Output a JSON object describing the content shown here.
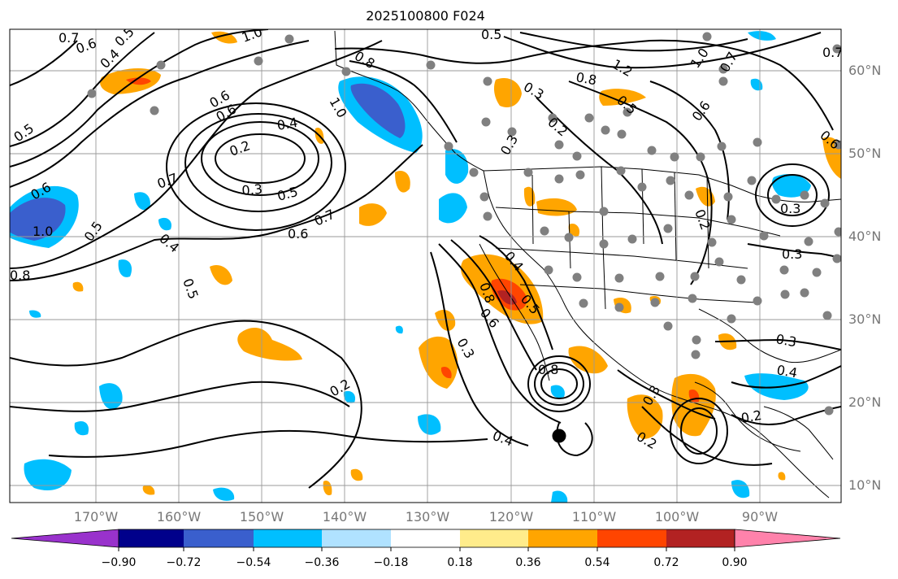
{
  "title": "2025100800 F024",
  "lat_labels": [
    "60°N",
    "50°N",
    "40°N",
    "30°N",
    "20°N",
    "10°N"
  ],
  "lon_labels": [
    "170°W",
    "160°W",
    "150°W",
    "140°W",
    "130°W",
    "120°W",
    "110°W",
    "100°W",
    "90°W"
  ],
  "colorbar": {
    "colors": [
      "#9932cc",
      "#00008b",
      "#3a5fcd",
      "#00bfff",
      "#b0e2ff",
      "#ffffff",
      "#ffec8b",
      "#ffa500",
      "#ff4500",
      "#b22222",
      "#ff82ab"
    ],
    "tick_labels": [
      "−0.90",
      "−0.72",
      "−0.54",
      "−0.36",
      "−0.18",
      "0.18",
      "0.36",
      "0.54",
      "0.72",
      "0.90"
    ]
  },
  "contour_labels": [
    "0.5",
    "0.7",
    "0.6",
    "0.4",
    "0.5",
    "0.6",
    "0.2",
    "0.7",
    "0.5",
    "0.8",
    "1.0",
    "0.6",
    "0.4",
    "0.2",
    "0.3",
    "0.5",
    "0.7",
    "0.6",
    "0.4",
    "0.5",
    "1.0",
    "0.6",
    "0.8",
    "0.5",
    "1.0",
    "0.3",
    "0.2",
    "0.8",
    "1.2",
    "0.5",
    "1.0",
    "0.6",
    "0.3",
    "0.2",
    "0.7",
    "0.3",
    "0.8",
    "0.6",
    "0.4",
    "0.3",
    "0.8",
    "0.2",
    "0.4",
    "0.3",
    "0.2",
    "0.3",
    "0.4",
    "0.3",
    "0.5",
    "0.7",
    "0.6"
  ]
}
